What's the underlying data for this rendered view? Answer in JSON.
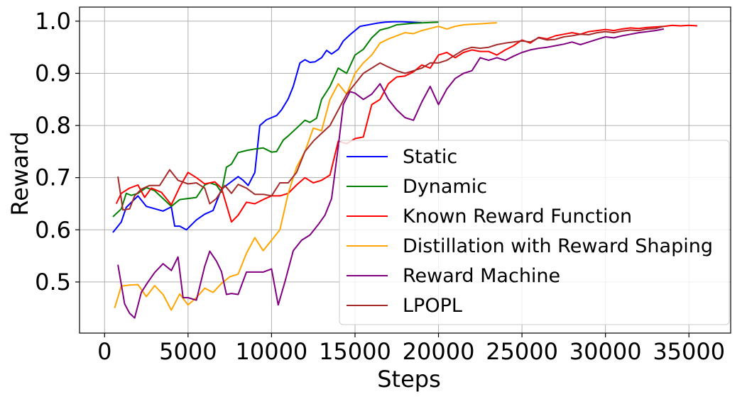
{
  "chart_data": {
    "type": "line",
    "title": "",
    "xlabel": "Steps",
    "ylabel": "Reward",
    "xlim": [
      -1500,
      37500
    ],
    "ylim": [
      0.402,
      1.027
    ],
    "xticks": [
      0,
      5000,
      10000,
      15000,
      20000,
      25000,
      30000,
      35000
    ],
    "xtick_labels": [
      "0",
      "5000",
      "10000",
      "15000",
      "20000",
      "25000",
      "30000",
      "35000"
    ],
    "yticks": [
      0.5,
      0.6,
      0.7,
      0.8,
      0.9,
      1.0
    ],
    "ytick_labels": [
      "0.5",
      "0.6",
      "0.7",
      "0.8",
      "0.9",
      "1.0"
    ],
    "grid": true,
    "legend_position": "lower-right",
    "series": [
      {
        "name": "Static",
        "color": "#0000ff",
        "x": [
          500,
          1000,
          1300,
          2000,
          2500,
          3500,
          4000,
          4200,
          4500,
          4900,
          5500,
          6000,
          6500,
          7000,
          7500,
          8000,
          8300,
          8600,
          9000,
          9300,
          9700,
          10000,
          10300,
          10600,
          11000,
          11300,
          11700,
          12000,
          12300,
          12600,
          13000,
          13300,
          13600,
          14000,
          14300,
          14700,
          15000,
          15300,
          15800,
          16300,
          16800,
          17300,
          17800,
          18300,
          19000
        ],
        "values": [
          0.595,
          0.615,
          0.643,
          0.665,
          0.645,
          0.636,
          0.644,
          0.607,
          0.607,
          0.6,
          0.619,
          0.63,
          0.637,
          0.678,
          0.69,
          0.702,
          0.695,
          0.685,
          0.71,
          0.8,
          0.811,
          0.815,
          0.819,
          0.83,
          0.851,
          0.875,
          0.92,
          0.926,
          0.921,
          0.922,
          0.93,
          0.944,
          0.937,
          0.946,
          0.962,
          0.974,
          0.982,
          0.99,
          0.993,
          0.996,
          0.998,
          0.999,
          0.999,
          0.998,
          0.997
        ]
      },
      {
        "name": "Dynamic",
        "color": "#008000",
        "x": [
          500,
          1000,
          1300,
          1600,
          2000,
          2500,
          3000,
          3500,
          4000,
          4500,
          5000,
          5500,
          6000,
          6300,
          6700,
          7000,
          7300,
          7600,
          8000,
          8500,
          9000,
          9500,
          10000,
          10300,
          10700,
          11000,
          11500,
          12000,
          12300,
          12700,
          13000,
          13500,
          14000,
          14500,
          15000,
          15500,
          16000,
          16500,
          17000,
          17500,
          18500,
          20000
        ],
        "values": [
          0.625,
          0.64,
          0.67,
          0.666,
          0.67,
          0.681,
          0.675,
          0.66,
          0.645,
          0.658,
          0.66,
          0.662,
          0.686,
          0.69,
          0.686,
          0.672,
          0.72,
          0.726,
          0.748,
          0.752,
          0.755,
          0.757,
          0.749,
          0.75,
          0.772,
          0.78,
          0.795,
          0.81,
          0.806,
          0.814,
          0.85,
          0.875,
          0.91,
          0.9,
          0.935,
          0.946,
          0.968,
          0.983,
          0.987,
          0.993,
          0.996,
          0.998
        ]
      },
      {
        "name": "Known Reward Function",
        "color": "#ff0000",
        "x": [
          700,
          1000,
          1500,
          2000,
          2400,
          2800,
          3400,
          4000,
          4500,
          5000,
          5500,
          6000,
          6600,
          7000,
          7600,
          8000,
          8500,
          9000,
          9500,
          10000,
          10500,
          11000,
          11500,
          12000,
          12500,
          13000,
          13500,
          14000,
          14500,
          15000,
          15500,
          16000,
          16500,
          17000,
          17500,
          18000,
          18500,
          19000,
          19500,
          20000,
          20500,
          21000,
          21500,
          22000,
          22500,
          23000,
          23500,
          24000,
          24500,
          25000,
          25500,
          26000,
          26500,
          27000,
          27500,
          28000,
          28500,
          29000,
          29500,
          30000,
          30500,
          31000,
          31500,
          32000,
          32500,
          33000,
          33500,
          34000,
          34500,
          35000,
          35500
        ],
        "values": [
          0.65,
          0.67,
          0.68,
          0.686,
          0.662,
          0.68,
          0.672,
          0.648,
          0.682,
          0.71,
          0.7,
          0.688,
          0.692,
          0.68,
          0.615,
          0.628,
          0.653,
          0.65,
          0.658,
          0.665,
          0.665,
          0.67,
          0.686,
          0.7,
          0.69,
          0.695,
          0.705,
          0.77,
          0.765,
          0.775,
          0.778,
          0.84,
          0.85,
          0.88,
          0.893,
          0.895,
          0.903,
          0.916,
          0.91,
          0.935,
          0.94,
          0.93,
          0.94,
          0.945,
          0.942,
          0.942,
          0.935,
          0.945,
          0.953,
          0.964,
          0.958,
          0.969,
          0.966,
          0.972,
          0.975,
          0.978,
          0.975,
          0.98,
          0.982,
          0.984,
          0.982,
          0.985,
          0.987,
          0.986,
          0.988,
          0.989,
          0.99,
          0.992,
          0.991,
          0.992,
          0.991
        ]
      },
      {
        "name": "Distillation with Reward Shaping",
        "color": "#ffa500",
        "x": [
          600,
          1000,
          1500,
          2000,
          2500,
          3000,
          3500,
          4000,
          4500,
          5000,
          5500,
          6000,
          6500,
          7000,
          7500,
          8000,
          8500,
          9000,
          9500,
          10000,
          10500,
          11000,
          11500,
          12000,
          12500,
          13000,
          13500,
          14000,
          14500,
          15000,
          15500,
          16000,
          16500,
          17000,
          17500,
          18000,
          18500,
          19000,
          19500,
          20000,
          20500,
          21000,
          21500,
          22000,
          22500,
          23000,
          23500
        ],
        "values": [
          0.45,
          0.492,
          0.494,
          0.495,
          0.472,
          0.493,
          0.476,
          0.446,
          0.477,
          0.456,
          0.47,
          0.488,
          0.48,
          0.497,
          0.51,
          0.515,
          0.555,
          0.585,
          0.56,
          0.58,
          0.6,
          0.67,
          0.72,
          0.75,
          0.795,
          0.79,
          0.85,
          0.88,
          0.86,
          0.9,
          0.92,
          0.935,
          0.958,
          0.966,
          0.972,
          0.978,
          0.976,
          0.982,
          0.986,
          0.99,
          0.985,
          0.99,
          0.993,
          0.994,
          0.995,
          0.996,
          0.997
        ]
      },
      {
        "name": "Reward Machine",
        "color": "#800080",
        "x": [
          800,
          1200,
          1500,
          1800,
          2200,
          2600,
          3000,
          3500,
          4000,
          4400,
          4700,
          5000,
          5500,
          6000,
          6300,
          6700,
          7000,
          7300,
          7600,
          8000,
          8500,
          9000,
          9500,
          10000,
          10400,
          10800,
          11300,
          11800,
          12300,
          12800,
          13200,
          13600,
          14000,
          14300,
          14700,
          15000,
          15500,
          16000,
          16500,
          17000,
          17500,
          18000,
          18500,
          19000,
          19500,
          20000,
          20500,
          21000,
          21500,
          22000,
          22500,
          23000,
          23500,
          24000,
          24500,
          25000,
          25500,
          26000,
          26500,
          27000,
          27500,
          28000,
          28500,
          29000,
          29500,
          30000,
          30500,
          31000,
          31500,
          32000,
          32500,
          33000,
          33500
        ],
        "values": [
          0.533,
          0.458,
          0.44,
          0.431,
          0.48,
          0.5,
          0.518,
          0.535,
          0.522,
          0.548,
          0.47,
          0.47,
          0.465,
          0.53,
          0.559,
          0.54,
          0.52,
          0.476,
          0.478,
          0.476,
          0.519,
          0.519,
          0.519,
          0.525,
          0.456,
          0.5,
          0.56,
          0.58,
          0.59,
          0.61,
          0.628,
          0.66,
          0.76,
          0.84,
          0.865,
          0.862,
          0.85,
          0.86,
          0.88,
          0.85,
          0.83,
          0.815,
          0.81,
          0.845,
          0.875,
          0.84,
          0.87,
          0.89,
          0.9,
          0.905,
          0.93,
          0.925,
          0.93,
          0.925,
          0.933,
          0.94,
          0.945,
          0.948,
          0.95,
          0.953,
          0.956,
          0.96,
          0.955,
          0.96,
          0.965,
          0.97,
          0.968,
          0.972,
          0.975,
          0.978,
          0.98,
          0.982,
          0.985
        ]
      },
      {
        "name": "LPOPL",
        "color": "#a52a2a",
        "x": [
          800,
          1100,
          1500,
          1800,
          2200,
          2700,
          3300,
          3900,
          4400,
          5000,
          5500,
          6000,
          6300,
          6700,
          7200,
          7600,
          8000,
          8500,
          9000,
          9500,
          10000,
          10500,
          11000,
          11500,
          12000,
          12500,
          13000,
          13500,
          14000,
          14500,
          15000,
          15500,
          16000,
          16500,
          17000,
          17500,
          18000,
          18500,
          19000,
          19500,
          20000,
          20500,
          21000,
          21500,
          22000,
          22500,
          23000,
          23500,
          24000,
          24500,
          25000,
          25500,
          26000,
          26500,
          27000,
          27500,
          28000,
          28500,
          29000,
          29500,
          30000,
          30500,
          31000,
          31500,
          32000,
          32500,
          33000,
          33500
        ],
        "values": [
          0.702,
          0.638,
          0.64,
          0.665,
          0.678,
          0.685,
          0.685,
          0.715,
          0.695,
          0.688,
          0.69,
          0.68,
          0.65,
          0.66,
          0.685,
          0.67,
          0.687,
          0.68,
          0.668,
          0.668,
          0.665,
          0.69,
          0.69,
          0.71,
          0.75,
          0.77,
          0.785,
          0.8,
          0.83,
          0.86,
          0.88,
          0.9,
          0.91,
          0.92,
          0.912,
          0.905,
          0.9,
          0.905,
          0.91,
          0.92,
          0.92,
          0.925,
          0.935,
          0.945,
          0.95,
          0.948,
          0.95,
          0.955,
          0.958,
          0.96,
          0.962,
          0.96,
          0.968,
          0.964,
          0.965,
          0.97,
          0.972,
          0.975,
          0.974,
          0.978,
          0.98,
          0.978,
          0.981,
          0.983,
          0.982,
          0.985,
          0.986,
          0.99
        ]
      }
    ]
  }
}
